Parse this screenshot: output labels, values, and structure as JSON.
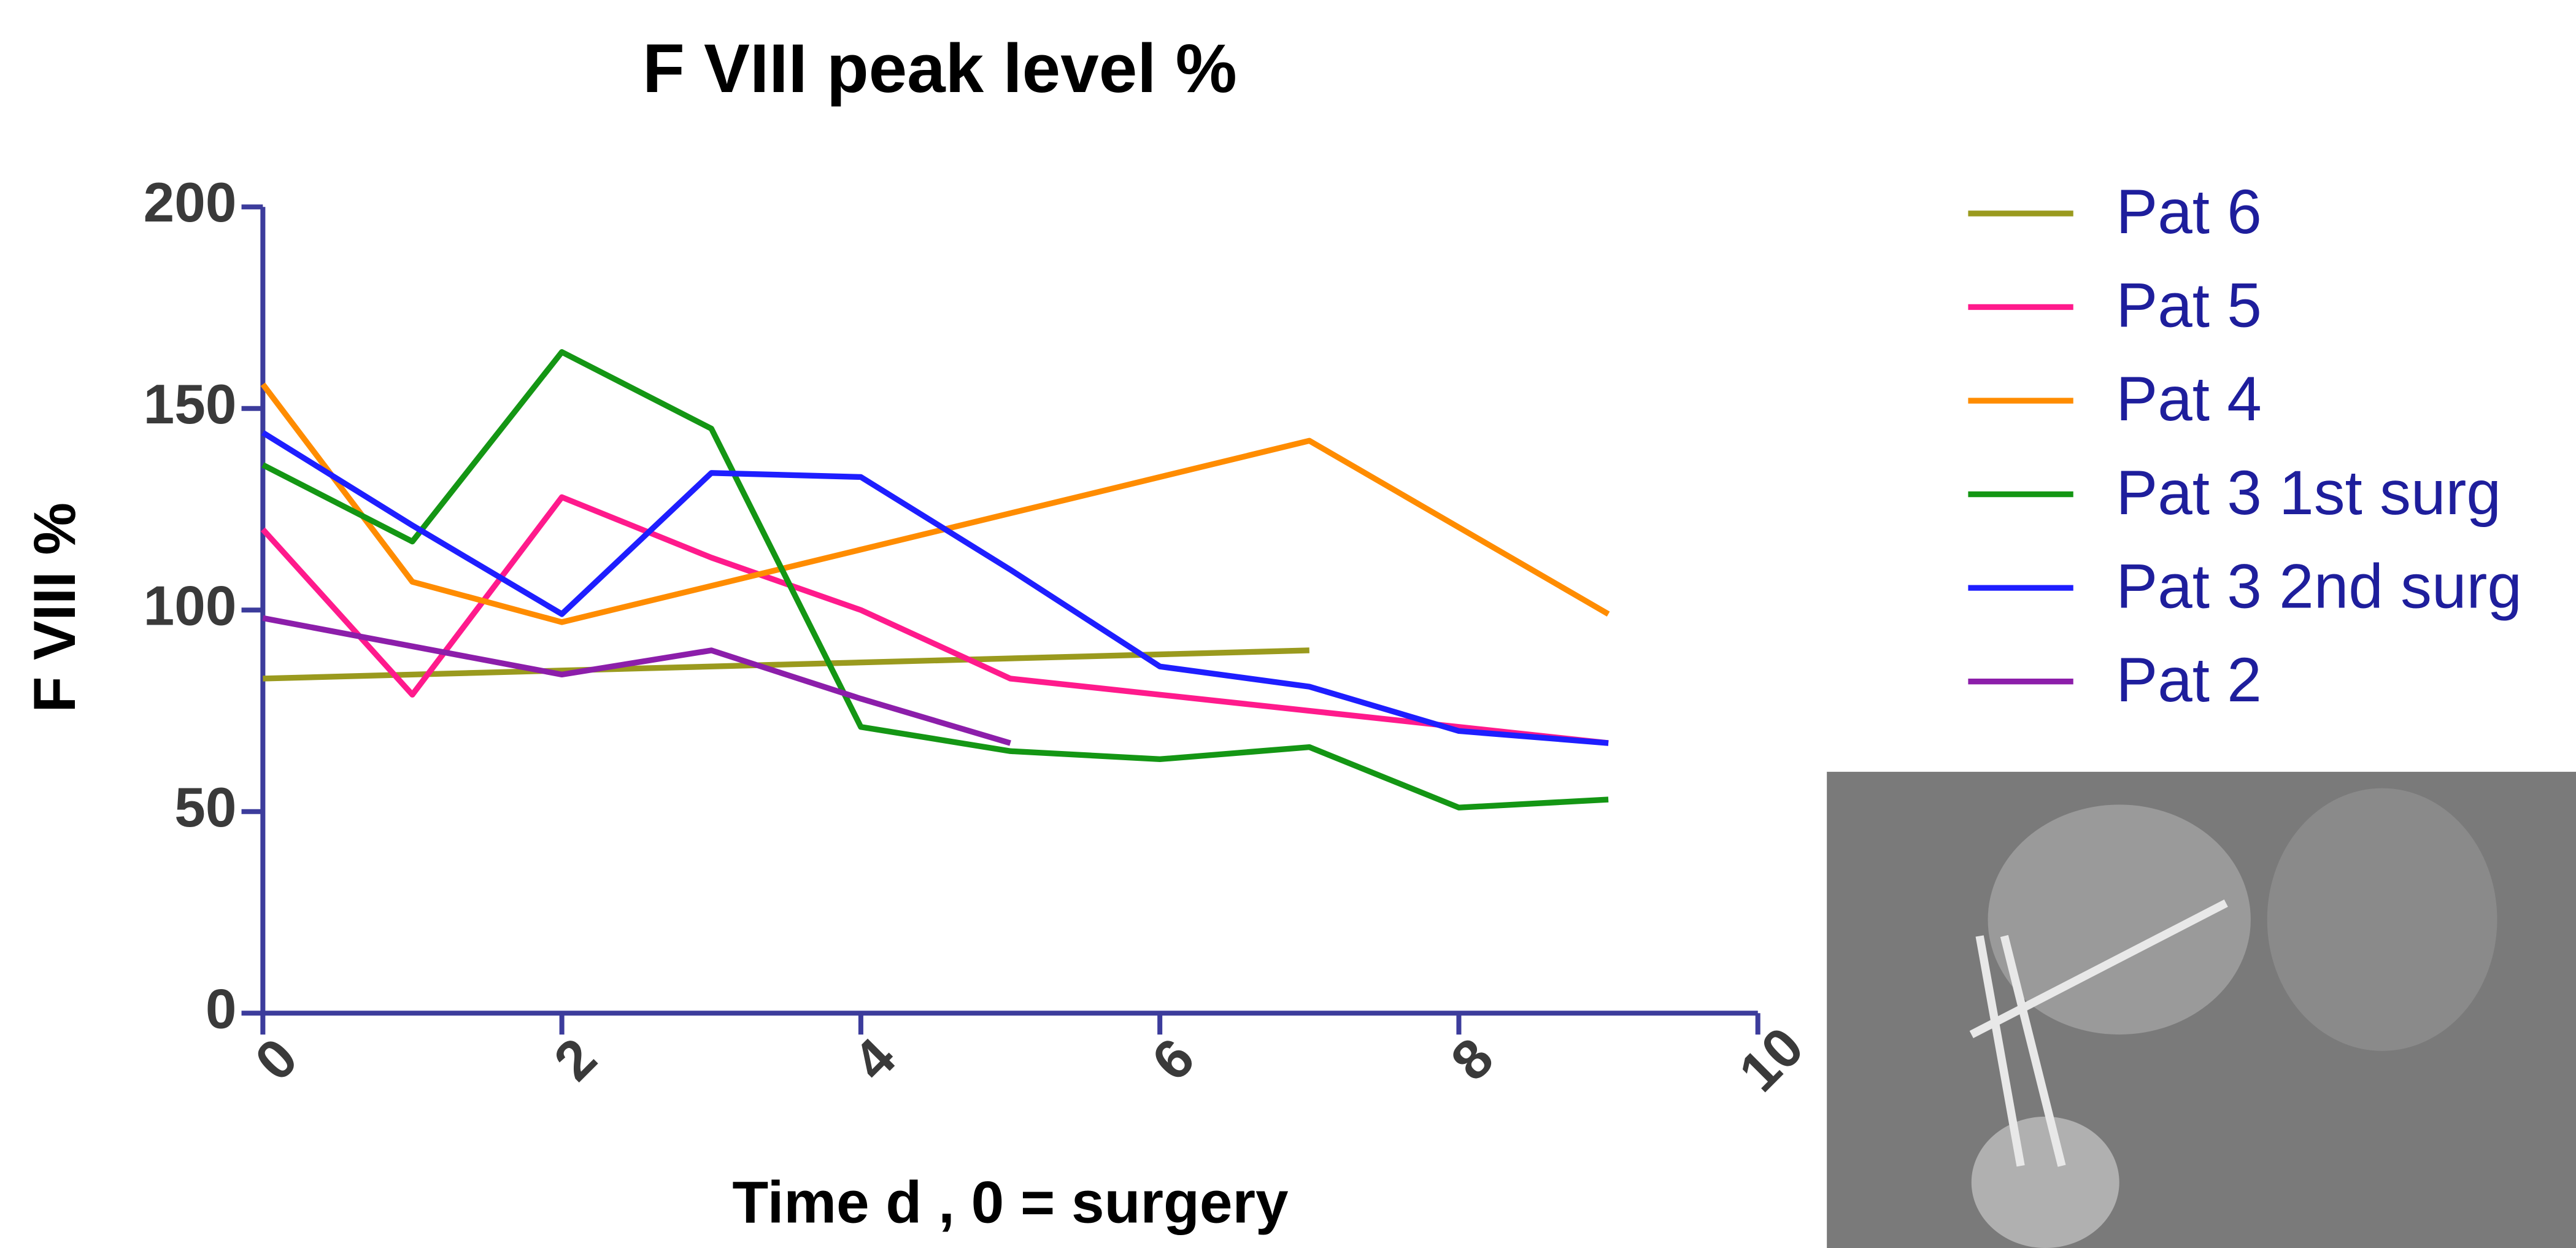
{
  "chart_data": {
    "type": "line",
    "title": "F VIII peak level %",
    "x_label": "Time d , 0 = surgery",
    "y_label": "F VIII %",
    "xlim": [
      0,
      10
    ],
    "xticks": [
      0,
      2,
      4,
      6,
      8,
      10
    ],
    "ylim": [
      0,
      200
    ],
    "yticks": [
      0,
      50,
      100,
      150,
      200
    ],
    "axis_color": "#3c3c9c",
    "series": [
      {
        "name": "Pat 6",
        "color": "#9a9a1e",
        "x": [
          0,
          7
        ],
        "values": [
          83,
          90
        ]
      },
      {
        "name": "Pat 5",
        "color": "#ff1a8c",
        "x": [
          0,
          1,
          2,
          3,
          4,
          5,
          6,
          7,
          8,
          9
        ],
        "values": [
          120,
          79,
          128,
          113,
          100,
          83,
          79,
          75,
          71,
          67
        ]
      },
      {
        "name": "Pat 4",
        "color": "#ff8c00",
        "x": [
          0,
          1,
          2,
          7,
          9
        ],
        "values": [
          156,
          107,
          97,
          142,
          99
        ]
      },
      {
        "name": "Pat 3 1st surg",
        "color": "#149614",
        "x": [
          0,
          1,
          2,
          3,
          4,
          5,
          6,
          7,
          8,
          9
        ],
        "values": [
          136,
          117,
          164,
          145,
          71,
          65,
          63,
          66,
          51,
          53
        ]
      },
      {
        "name": "Pat 3 2nd surg",
        "color": "#1e1eff",
        "x": [
          0,
          1,
          2,
          3,
          4,
          5,
          6,
          7,
          8,
          9
        ],
        "values": [
          144,
          121,
          99,
          134,
          133,
          110,
          86,
          81,
          70,
          67
        ]
      },
      {
        "name": "Pat 2",
        "color": "#8c1eaa",
        "x": [
          0,
          1,
          2,
          3,
          4,
          5
        ],
        "values": [
          98,
          91,
          84,
          90,
          78,
          67
        ]
      }
    ]
  }
}
